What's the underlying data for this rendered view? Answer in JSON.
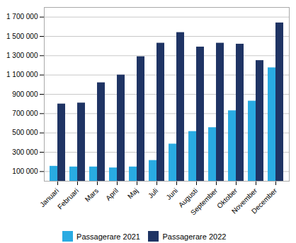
{
  "chart_data": {
    "type": "bar",
    "categories": [
      "Januari",
      "Februari",
      "Mars",
      "April",
      "Maj",
      "Juli",
      "Juni",
      "Augusti",
      "September",
      "Oktober",
      "November",
      "December"
    ],
    "series": [
      {
        "name": "Passagerare 2021",
        "color": "#29ABE2",
        "values": [
          155000,
          148000,
          148000,
          138000,
          148000,
          215000,
          385000,
          515000,
          555000,
          730000,
          830000,
          1175000
        ]
      },
      {
        "name": "Passagerare 2022",
        "color": "#1F3464",
        "values": [
          800000,
          810000,
          1020000,
          1100000,
          1290000,
          1430000,
          1540000,
          1390000,
          1430000,
          1420000,
          1250000,
          1640000
        ]
      }
    ],
    "ylim": [
      0,
      1800000
    ],
    "yticks": [
      {
        "value": 100000,
        "label": "100 000"
      },
      {
        "value": 300000,
        "label": "300 000"
      },
      {
        "value": 500000,
        "label": "500 000"
      },
      {
        "value": 700000,
        "label": "700 000"
      },
      {
        "value": 900000,
        "label": "900 000"
      },
      {
        "value": 1100000,
        "label": "1 100 000"
      },
      {
        "value": 1300000,
        "label": "1 300 000"
      },
      {
        "value": 1500000,
        "label": "1 500 000"
      },
      {
        "value": 1700000,
        "label": "1 700 000"
      }
    ],
    "grid": true,
    "legend": "bottom"
  }
}
